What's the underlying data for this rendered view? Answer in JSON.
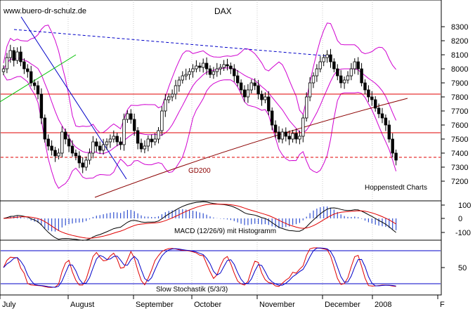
{
  "chart_data": {
    "type": "candlestick",
    "title": "DAX",
    "watermark": "www.buero-dr-schulz.de",
    "source": "Hoppenstedt Charts",
    "months": [
      "July",
      "August",
      "September",
      "October",
      "November",
      "December",
      "2008",
      "F"
    ],
    "price_ticks": [
      7200,
      7300,
      7400,
      7500,
      7600,
      7700,
      7800,
      7900,
      8000,
      8100,
      8200,
      8300
    ],
    "macd_ticks": [
      "100",
      "0",
      "-100"
    ],
    "stoch_ticks": [
      "50"
    ],
    "ma_label": "GD200",
    "macd_label": "MACD (12/26/9) mit Histogramm",
    "stoch_label": "Slow Stochastik (5/3/3)",
    "support_levels": [
      7820,
      7545
    ],
    "dashed_level": 7370,
    "closes": [
      8000,
      8080,
      8130,
      8060,
      8120,
      8050,
      8000,
      7980,
      7900,
      7880,
      7820,
      7650,
      7500,
      7450,
      7420,
      7380,
      7400,
      7550,
      7500,
      7450,
      7400,
      7380,
      7330,
      7300,
      7350,
      7400,
      7480,
      7450,
      7420,
      7460,
      7480,
      7500,
      7520,
      7480,
      7460,
      7640,
      7680,
      7640,
      7560,
      7470,
      7430,
      7450,
      7500,
      7480,
      7500,
      7560,
      7700,
      7780,
      7800,
      7820,
      7880,
      7920,
      7950,
      7960,
      7980,
      8000,
      8020,
      8010,
      8040,
      8000,
      7960,
      7980,
      8000,
      8010,
      8030,
      8020,
      8000,
      7950,
      7900,
      7850,
      7800,
      7850,
      7900,
      7880,
      7820,
      7780,
      7800,
      7700,
      7600,
      7550,
      7500,
      7550,
      7520,
      7500,
      7540,
      7500,
      7520,
      7650,
      7800,
      7900,
      7950,
      8000,
      8050,
      8080,
      8100,
      8050,
      8000,
      7950,
      7900,
      7920,
      7950,
      8000,
      8050,
      8000,
      7900,
      7850,
      7800,
      7780,
      7720,
      7680,
      7650,
      7600,
      7500,
      7400,
      7350
    ]
  }
}
